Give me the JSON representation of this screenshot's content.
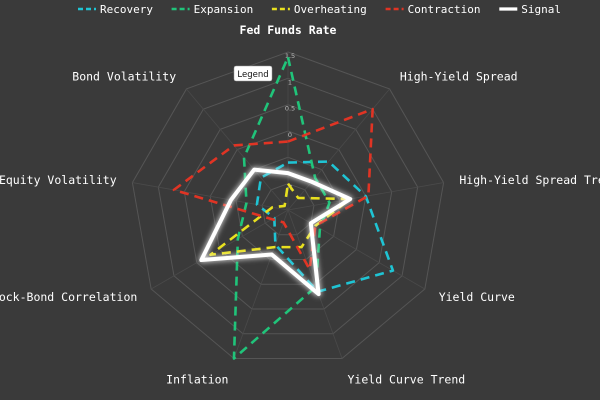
{
  "chart_data": {
    "type": "radar",
    "axes": [
      "Fed Funds Rate",
      "High-Yield Spread",
      "High-Yield Spread Trend",
      "Yield Curve",
      "Yield Curve Trend",
      "Inflation",
      "Stock-Bond Correlation",
      "Equity Volatility",
      "Bond Volatility"
    ],
    "rlim": [
      -1.5,
      1.5
    ],
    "ticks": [
      -1,
      -0.5,
      0,
      0.5,
      1,
      1.5
    ],
    "tick_labels": [
      "-1",
      "",
      "0",
      "0.5",
      "1",
      "1.5"
    ],
    "series": [
      {
        "name": "Recovery",
        "color": "#1fc4d4",
        "style": "dashed",
        "values": [
          -0.6,
          -0.3,
          0.0,
          0.8,
          0.15,
          -0.8,
          -1.2,
          -0.9,
          -0.7
        ]
      },
      {
        "name": "Expansion",
        "color": "#20c47a",
        "style": "dashed",
        "values": [
          1.4,
          -0.7,
          -0.7,
          -0.8,
          0.05,
          1.5,
          -0.4,
          -0.7,
          -0.2
        ]
      },
      {
        "name": "Overheating",
        "color": "#e8e01f",
        "style": "dashed",
        "values": [
          -1.0,
          -1.2,
          -0.3,
          -0.9,
          -0.75,
          -0.75,
          0.2,
          -1.2,
          -1.4
        ]
      },
      {
        "name": "Contraction",
        "color": "#e03424",
        "style": "dashed",
        "values": [
          -0.2,
          1.0,
          0.05,
          -0.9,
          -0.3,
          -1.25,
          -1.15,
          0.7,
          0.1
        ]
      },
      {
        "name": "Signal",
        "color": "#ffffff",
        "style": "solid",
        "values": [
          -0.8,
          -0.8,
          -0.3,
          -1.0,
          0.2,
          -0.6,
          0.4,
          -0.4,
          -0.5
        ]
      }
    ],
    "legend_title": "Legend",
    "legend_position": "top"
  }
}
